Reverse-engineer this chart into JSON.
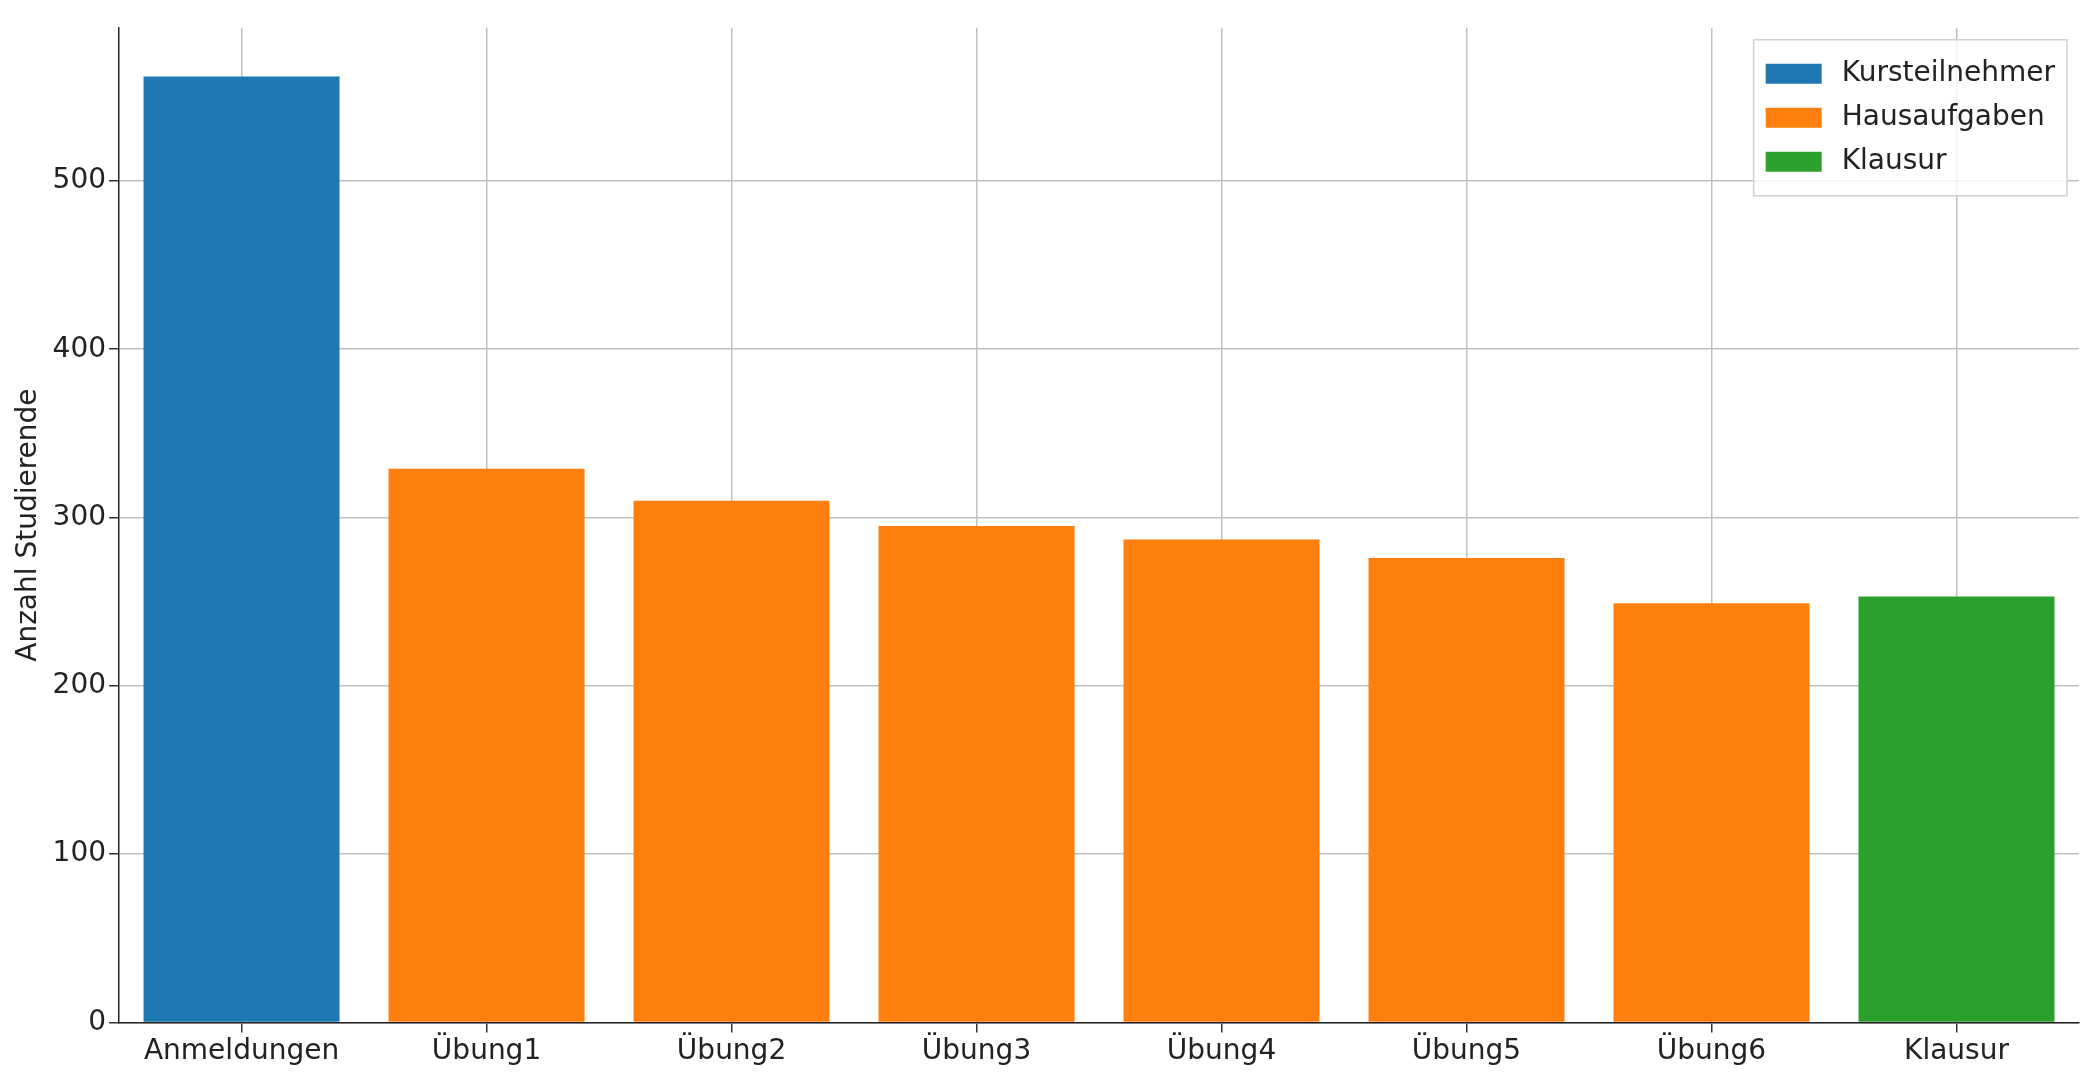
{
  "chart_data": {
    "type": "bar",
    "ylabel": "Anzahl Studierende",
    "categories": [
      "Anmeldungen",
      "Übung1",
      "Übung2",
      "Übung3",
      "Übung4",
      "Übung5",
      "Übung6",
      "Klausur"
    ],
    "series": [
      {
        "name": "Kursteilnehmer",
        "color": "#1f77b4",
        "values": [
          562,
          null,
          null,
          null,
          null,
          null,
          null,
          null
        ]
      },
      {
        "name": "Hausaufgaben",
        "color": "#ff7f0e",
        "values": [
          null,
          329,
          310,
          295,
          287,
          276,
          249,
          null
        ]
      },
      {
        "name": "Klausur",
        "color": "#2ca02c",
        "values": [
          null,
          null,
          null,
          null,
          null,
          null,
          null,
          253
        ]
      }
    ],
    "ylim": [
      0,
      591
    ],
    "yticks": [
      0,
      100,
      200,
      300,
      400,
      500
    ],
    "grid": true,
    "legend": "top right"
  }
}
